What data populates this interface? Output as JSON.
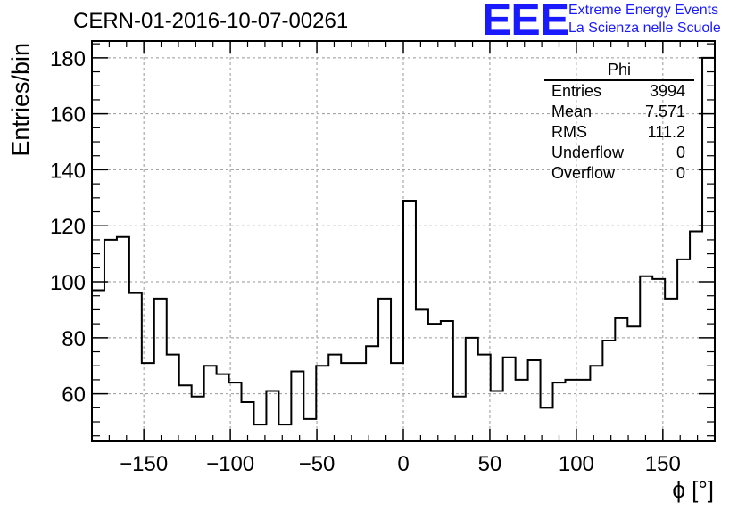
{
  "title": "CERN-01-2016-10-07-00261",
  "logo": {
    "mark": "EEE",
    "line1": "Extreme Energy Events",
    "line2": "La Scienza nelle Scuole",
    "color": "#1a1aff"
  },
  "stats": {
    "title": "Phi",
    "rows": [
      {
        "label": "Entries",
        "value": "3994"
      },
      {
        "label": "Mean",
        "value": "7.571"
      },
      {
        "label": "RMS",
        "value": "111.2"
      },
      {
        "label": "Underflow",
        "value": "0"
      },
      {
        "label": "Overflow",
        "value": "0"
      }
    ]
  },
  "chart_data": {
    "type": "histogram",
    "title": "CERN-01-2016-10-07-00261",
    "xlabel": "ϕ [°]",
    "ylabel": "Entries/bin",
    "xlim": [
      -180,
      180
    ],
    "ylim": [
      43,
      186
    ],
    "grid": true,
    "bin_edges_start": -180,
    "bin_width": 7.2,
    "values": [
      97,
      115,
      116,
      96,
      71,
      94,
      74,
      63,
      59,
      70,
      67,
      64,
      57,
      49,
      61,
      49,
      68,
      51,
      70,
      74,
      71,
      71,
      77,
      94,
      71,
      129,
      90,
      85,
      86,
      59,
      80,
      74,
      61,
      73,
      65,
      72,
      55,
      64,
      65,
      65,
      70,
      79,
      87,
      84,
      102,
      101,
      94,
      108,
      118,
      180
    ],
    "x_ticks": [
      -150,
      -100,
      -50,
      0,
      50,
      100,
      150
    ],
    "x_tick_labels": [
      "−150",
      "−100",
      "−50",
      "0",
      "50",
      "100",
      "150"
    ],
    "y_ticks": [
      60,
      80,
      100,
      120,
      140,
      160,
      180
    ],
    "y_tick_labels": [
      "60",
      "80",
      "100",
      "120",
      "140",
      "160",
      "180"
    ]
  }
}
